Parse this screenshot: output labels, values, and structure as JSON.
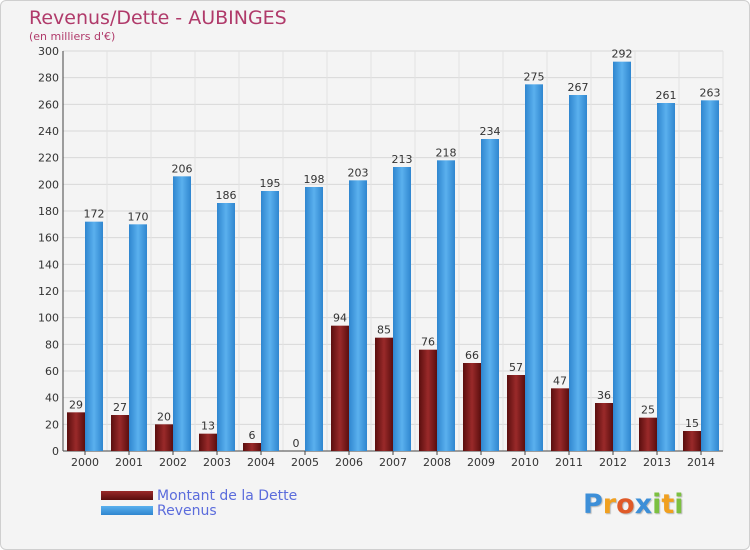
{
  "chart_data": {
    "type": "bar",
    "title": "Revenus/Dette - AUBINGES",
    "subtitle": "(en milliers d'€)",
    "categories": [
      "2000",
      "2001",
      "2002",
      "2003",
      "2004",
      "2005",
      "2006",
      "2007",
      "2008",
      "2009",
      "2010",
      "2011",
      "2012",
      "2013",
      "2014"
    ],
    "series": [
      {
        "name": "Montant de la Dette",
        "color": "#7a1a1a",
        "values": [
          29,
          27,
          20,
          13,
          6,
          0,
          94,
          85,
          76,
          66,
          57,
          47,
          36,
          25,
          15
        ]
      },
      {
        "name": "Revenus",
        "color": "#3d9ae0",
        "values": [
          172,
          170,
          206,
          186,
          195,
          198,
          203,
          213,
          218,
          234,
          275,
          267,
          292,
          261,
          263
        ]
      }
    ],
    "ylim": [
      0,
      300
    ],
    "yticks": [
      0,
      20,
      40,
      60,
      80,
      100,
      120,
      140,
      160,
      180,
      200,
      220,
      240,
      260,
      280,
      300
    ],
    "grid": true,
    "legend_position": "bottom-left"
  },
  "logo": {
    "text": "Proxiti",
    "letters": [
      {
        "ch": "P",
        "color": "#3d8fd8"
      },
      {
        "ch": "r",
        "color": "#f0a020"
      },
      {
        "ch": "o",
        "color": "#e05a28"
      },
      {
        "ch": "x",
        "color": "#3d8fd8"
      },
      {
        "ch": "i",
        "color": "#7cc040"
      },
      {
        "ch": "t",
        "color": "#f0a020"
      },
      {
        "ch": "i",
        "color": "#7cc040"
      }
    ]
  }
}
